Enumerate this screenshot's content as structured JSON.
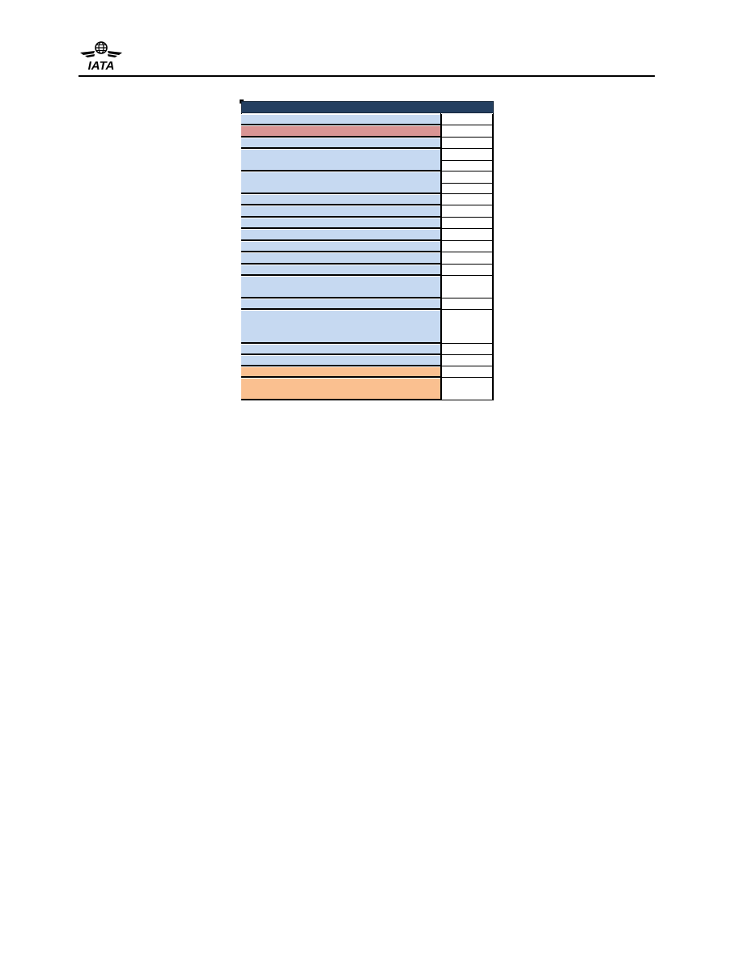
{
  "header": {
    "logo_text": "IATA",
    "logo_icon": "iata-globe-wings-icon"
  },
  "colors": {
    "title_bar": "#243f60",
    "row_blue": "#c6d9f1",
    "row_red": "#d99594",
    "row_orange": "#fac090",
    "value_cell": "#ffffff",
    "rule": "#000000"
  },
  "form": {
    "title": "",
    "rows": [
      {
        "kind": "blue",
        "label": "",
        "value": ""
      },
      {
        "kind": "red",
        "label": "",
        "value": ""
      },
      {
        "kind": "blue",
        "label": "",
        "value": ""
      },
      {
        "kind": "blue",
        "label": "",
        "value": "",
        "split": true
      },
      {
        "kind": "blue",
        "label": "",
        "value": "",
        "split": true
      },
      {
        "kind": "blue",
        "label": "",
        "value": ""
      },
      {
        "kind": "blue",
        "label": "",
        "value": ""
      },
      {
        "kind": "blue",
        "label": "",
        "value": ""
      },
      {
        "kind": "blue",
        "label": "",
        "value": ""
      },
      {
        "kind": "blue",
        "label": "",
        "value": ""
      },
      {
        "kind": "blue",
        "label": "",
        "value": ""
      },
      {
        "kind": "blue",
        "label": "",
        "value": ""
      },
      {
        "kind": "blue",
        "label": "",
        "value": ""
      },
      {
        "kind": "blue",
        "label": "",
        "value": ""
      },
      {
        "kind": "blue",
        "label": "",
        "value": ""
      },
      {
        "kind": "blue",
        "label": "",
        "value": ""
      },
      {
        "kind": "blue",
        "label": "",
        "value": ""
      },
      {
        "kind": "orange",
        "label": "",
        "value": ""
      },
      {
        "kind": "orange",
        "label": "",
        "value": ""
      }
    ]
  }
}
